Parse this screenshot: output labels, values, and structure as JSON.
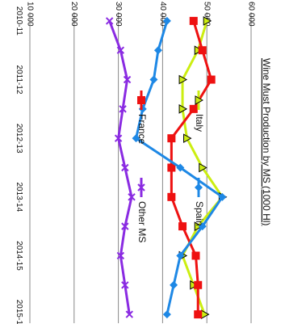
{
  "chart_data": {
    "type": "line",
    "title": "Wine Must Production by MS (1000 Hl)",
    "xlabel": "",
    "ylabel": "",
    "orientation": "rotated-90-clockwise",
    "ylim": [
      10000,
      60000
    ],
    "yticks": [
      10000,
      20000,
      30000,
      40000,
      50000,
      60000
    ],
    "ytick_labels": [
      "10 000",
      "20 000",
      "30 000",
      "40 000",
      "50 000",
      "60 000"
    ],
    "grid": true,
    "legend_position": "inside-center",
    "categories": [
      "2010-11",
      "2011-12",
      "2012-13",
      "2013-14",
      "2014-15",
      "2015-16"
    ],
    "x": [
      0,
      1,
      2,
      3,
      4,
      5
    ],
    "series": [
      {
        "name": "Italy",
        "color": "#ccee11",
        "marker": "triangle",
        "x": [
          0,
          0.5,
          1,
          1.5,
          2,
          2.5,
          3,
          3.5,
          4,
          4.5,
          5
        ],
        "values": [
          50000,
          48000,
          44500,
          44500,
          45500,
          49000,
          53500,
          48000,
          44500,
          47000,
          49500
        ]
      },
      {
        "name": "France",
        "color": "#ee1111",
        "marker": "square",
        "x": [
          0,
          0.5,
          1,
          1.5,
          2,
          2.5,
          3,
          3.5,
          4,
          4.5,
          5
        ],
        "values": [
          47000,
          49000,
          51000,
          47000,
          42000,
          42000,
          42000,
          44500,
          47500,
          48000,
          48000
        ]
      },
      {
        "name": "Spain",
        "color": "#1e88e5",
        "marker": "diamond",
        "x": [
          0,
          0.5,
          1,
          1.5,
          2,
          2.5,
          3,
          3.5,
          4,
          4.5,
          5
        ],
        "values": [
          41000,
          39000,
          38000,
          35500,
          34000,
          44000,
          53500,
          49000,
          44000,
          42500,
          41000
        ]
      },
      {
        "name": "Other MS",
        "color": "#8a2be2",
        "marker": "x",
        "x": [
          0,
          0.5,
          1,
          1.5,
          2,
          2.5,
          3,
          3.5,
          4,
          4.5,
          5
        ],
        "values": [
          28000,
          30500,
          32000,
          31000,
          30000,
          31500,
          33000,
          31500,
          30500,
          31500,
          32500
        ]
      }
    ]
  }
}
